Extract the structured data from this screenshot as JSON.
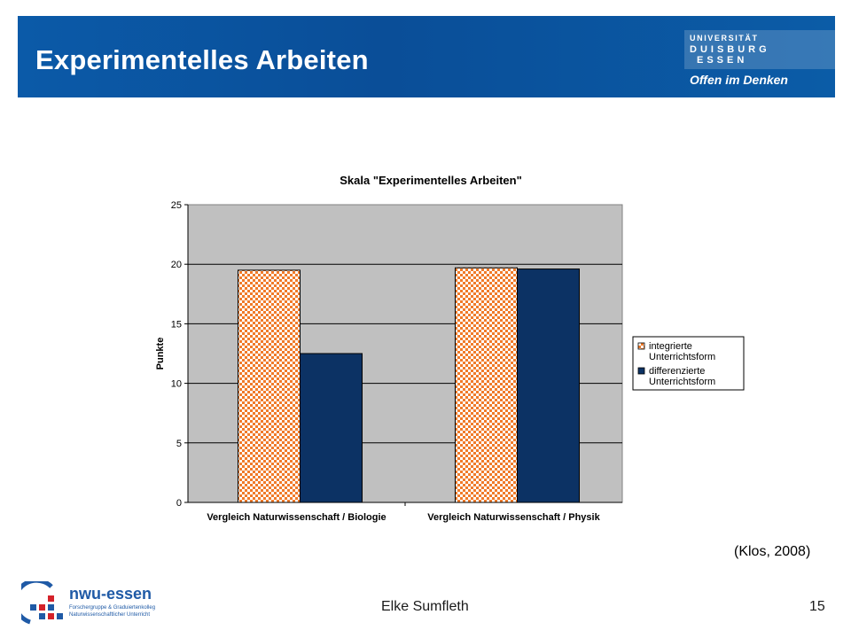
{
  "header": {
    "title": "Experimentelles Arbeiten",
    "university_line1": "UNIVERSITÄT",
    "university_line2": "DUISBURG",
    "university_line3": "ESSEN",
    "slogan": "Offen im Denken"
  },
  "chart_data": {
    "type": "bar",
    "title": "Skala \"Experimentelles Arbeiten\"",
    "xlabel": "",
    "ylabel": "Punkte",
    "ylim": [
      0,
      25
    ],
    "yticks": [
      "0",
      "5",
      "10",
      "15",
      "20",
      "25"
    ],
    "categories": [
      "Vergleich Naturwissenschaft / Biologie",
      "Vergleich Naturwissenschaft / Physik"
    ],
    "series": [
      {
        "name": "integrierte Unterrichtsform",
        "values": [
          19.5,
          19.7
        ],
        "color": "#f07b2a",
        "pattern": "checkerboard"
      },
      {
        "name": "differenzierte Unterrichtsform",
        "values": [
          12.5,
          19.6
        ],
        "color": "#0c3264"
      }
    ],
    "grid": true,
    "plot_background": "#c0c0c0",
    "legend_position": "right"
  },
  "citation": "(Klos, 2008)",
  "footer": {
    "author": "Elke Sumfleth",
    "page_number": "15",
    "logo_name": "nwu-essen",
    "logo_sub1": "Forschergruppe & Graduiertenkolleg",
    "logo_sub2": "Naturwissenschaftlicher Unterricht"
  },
  "colors": {
    "header_blue": "#0b5aa8",
    "logo_blue": "#1f5aa6",
    "logo_red": "#d4222a"
  }
}
